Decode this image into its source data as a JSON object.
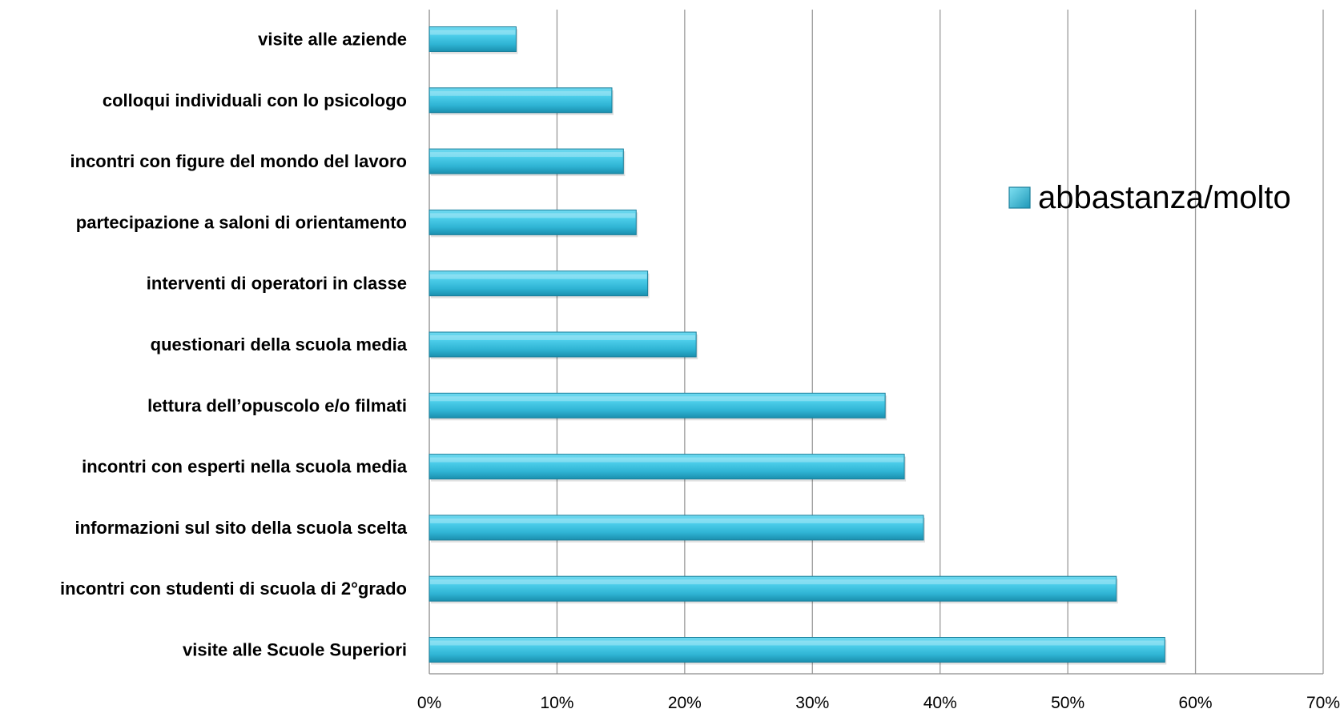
{
  "chart_data": {
    "type": "bar",
    "orientation": "horizontal",
    "title": "",
    "xlabel": "",
    "ylabel": "",
    "categories": [
      "visite alle aziende",
      "colloqui individuali con lo psicologo",
      "incontri con figure del mondo del lavoro",
      "partecipazione a saloni di orientamento",
      "interventi di operatori in classe",
      "questionari della scuola media",
      "lettura dell’opuscolo e/o filmati",
      "incontri con esperti nella scuola media",
      "informazioni sul sito della scuola scelta",
      "incontri con studenti di scuola di 2°grado",
      "visite alle Scuole Superiori"
    ],
    "series": [
      {
        "name": "abbastanza/molto",
        "values": [
          0.068,
          0.143,
          0.152,
          0.162,
          0.171,
          0.209,
          0.357,
          0.372,
          0.387,
          0.538,
          0.576
        ],
        "color": "#3fc0dc"
      }
    ],
    "xlim": [
      0,
      0.7
    ],
    "xticks": [
      0,
      0.1,
      0.2,
      0.3,
      0.4,
      0.5,
      0.6,
      0.7
    ],
    "xtick_labels": [
      "0%",
      "10%",
      "20%",
      "30%",
      "40%",
      "50%",
      "60%",
      "70%"
    ],
    "grid": true,
    "legend_position": "right"
  }
}
